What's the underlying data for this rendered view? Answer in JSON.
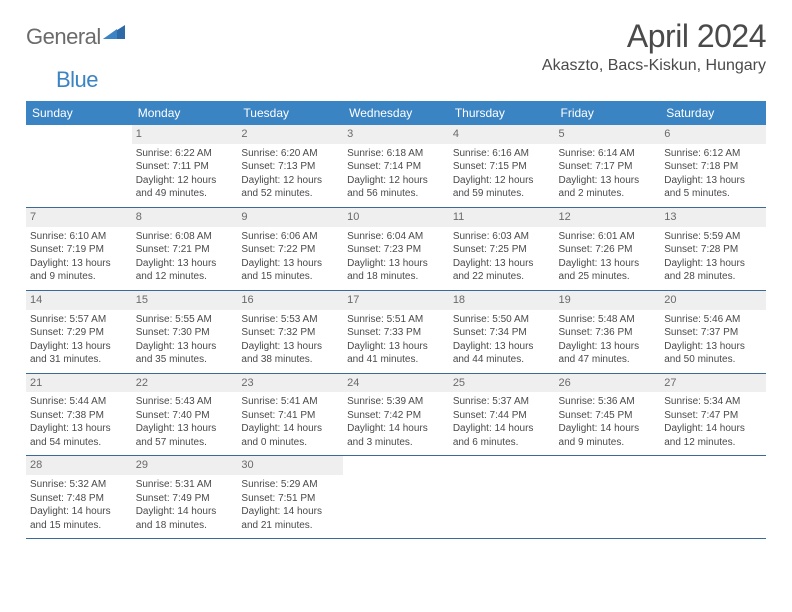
{
  "logo": {
    "part1": "General",
    "part2": "Blue"
  },
  "title": "April 2024",
  "location": "Akaszto, Bacs-Kiskun, Hungary",
  "colors": {
    "header_bg": "#3b84c4",
    "header_text": "#ffffff",
    "daynum_bg": "#efefef",
    "border": "#3b6a96",
    "text": "#4a4a4a"
  },
  "days_of_week": [
    "Sunday",
    "Monday",
    "Tuesday",
    "Wednesday",
    "Thursday",
    "Friday",
    "Saturday"
  ],
  "weeks": [
    [
      null,
      {
        "n": "1",
        "sr": "6:22 AM",
        "ss": "7:11 PM",
        "dl": "12 hours and 49 minutes."
      },
      {
        "n": "2",
        "sr": "6:20 AM",
        "ss": "7:13 PM",
        "dl": "12 hours and 52 minutes."
      },
      {
        "n": "3",
        "sr": "6:18 AM",
        "ss": "7:14 PM",
        "dl": "12 hours and 56 minutes."
      },
      {
        "n": "4",
        "sr": "6:16 AM",
        "ss": "7:15 PM",
        "dl": "12 hours and 59 minutes."
      },
      {
        "n": "5",
        "sr": "6:14 AM",
        "ss": "7:17 PM",
        "dl": "13 hours and 2 minutes."
      },
      {
        "n": "6",
        "sr": "6:12 AM",
        "ss": "7:18 PM",
        "dl": "13 hours and 5 minutes."
      }
    ],
    [
      {
        "n": "7",
        "sr": "6:10 AM",
        "ss": "7:19 PM",
        "dl": "13 hours and 9 minutes."
      },
      {
        "n": "8",
        "sr": "6:08 AM",
        "ss": "7:21 PM",
        "dl": "13 hours and 12 minutes."
      },
      {
        "n": "9",
        "sr": "6:06 AM",
        "ss": "7:22 PM",
        "dl": "13 hours and 15 minutes."
      },
      {
        "n": "10",
        "sr": "6:04 AM",
        "ss": "7:23 PM",
        "dl": "13 hours and 18 minutes."
      },
      {
        "n": "11",
        "sr": "6:03 AM",
        "ss": "7:25 PM",
        "dl": "13 hours and 22 minutes."
      },
      {
        "n": "12",
        "sr": "6:01 AM",
        "ss": "7:26 PM",
        "dl": "13 hours and 25 minutes."
      },
      {
        "n": "13",
        "sr": "5:59 AM",
        "ss": "7:28 PM",
        "dl": "13 hours and 28 minutes."
      }
    ],
    [
      {
        "n": "14",
        "sr": "5:57 AM",
        "ss": "7:29 PM",
        "dl": "13 hours and 31 minutes."
      },
      {
        "n": "15",
        "sr": "5:55 AM",
        "ss": "7:30 PM",
        "dl": "13 hours and 35 minutes."
      },
      {
        "n": "16",
        "sr": "5:53 AM",
        "ss": "7:32 PM",
        "dl": "13 hours and 38 minutes."
      },
      {
        "n": "17",
        "sr": "5:51 AM",
        "ss": "7:33 PM",
        "dl": "13 hours and 41 minutes."
      },
      {
        "n": "18",
        "sr": "5:50 AM",
        "ss": "7:34 PM",
        "dl": "13 hours and 44 minutes."
      },
      {
        "n": "19",
        "sr": "5:48 AM",
        "ss": "7:36 PM",
        "dl": "13 hours and 47 minutes."
      },
      {
        "n": "20",
        "sr": "5:46 AM",
        "ss": "7:37 PM",
        "dl": "13 hours and 50 minutes."
      }
    ],
    [
      {
        "n": "21",
        "sr": "5:44 AM",
        "ss": "7:38 PM",
        "dl": "13 hours and 54 minutes."
      },
      {
        "n": "22",
        "sr": "5:43 AM",
        "ss": "7:40 PM",
        "dl": "13 hours and 57 minutes."
      },
      {
        "n": "23",
        "sr": "5:41 AM",
        "ss": "7:41 PM",
        "dl": "14 hours and 0 minutes."
      },
      {
        "n": "24",
        "sr": "5:39 AM",
        "ss": "7:42 PM",
        "dl": "14 hours and 3 minutes."
      },
      {
        "n": "25",
        "sr": "5:37 AM",
        "ss": "7:44 PM",
        "dl": "14 hours and 6 minutes."
      },
      {
        "n": "26",
        "sr": "5:36 AM",
        "ss": "7:45 PM",
        "dl": "14 hours and 9 minutes."
      },
      {
        "n": "27",
        "sr": "5:34 AM",
        "ss": "7:47 PM",
        "dl": "14 hours and 12 minutes."
      }
    ],
    [
      {
        "n": "28",
        "sr": "5:32 AM",
        "ss": "7:48 PM",
        "dl": "14 hours and 15 minutes."
      },
      {
        "n": "29",
        "sr": "5:31 AM",
        "ss": "7:49 PM",
        "dl": "14 hours and 18 minutes."
      },
      {
        "n": "30",
        "sr": "5:29 AM",
        "ss": "7:51 PM",
        "dl": "14 hours and 21 minutes."
      },
      null,
      null,
      null,
      null
    ]
  ],
  "labels": {
    "sunrise": "Sunrise:",
    "sunset": "Sunset:",
    "daylight": "Daylight:"
  }
}
